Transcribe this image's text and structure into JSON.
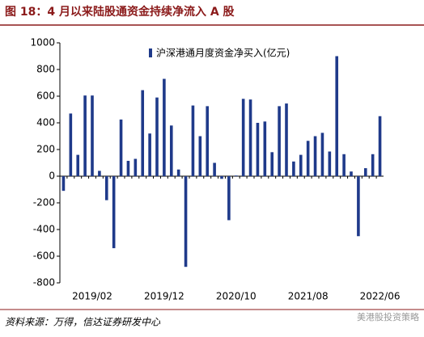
{
  "chart_data": {
    "type": "bar",
    "title": "图 18：4 月以来陆股通资金持续净流入 A 股",
    "legend": "沪深港通月度资金净买入(亿元)",
    "source": "资料来源：万得，信达证券研发中心",
    "watermark": "美港股投资策略",
    "color": "#1f3a8a",
    "categories": [
      null,
      null,
      null,
      null,
      "2019/02",
      null,
      null,
      null,
      null,
      null,
      null,
      null,
      null,
      null,
      "2019/12",
      null,
      null,
      null,
      null,
      null,
      null,
      null,
      null,
      null,
      "2020/10",
      null,
      null,
      null,
      null,
      null,
      null,
      null,
      null,
      null,
      "2021/08",
      null,
      null,
      null,
      null,
      null,
      null,
      null,
      null,
      null,
      "2022/06"
    ],
    "values": [
      -110,
      470,
      160,
      605,
      605,
      40,
      -180,
      -540,
      425,
      115,
      130,
      645,
      320,
      590,
      730,
      380,
      50,
      -680,
      530,
      300,
      525,
      100,
      -20,
      -330,
      5,
      580,
      575,
      400,
      410,
      180,
      525,
      545,
      110,
      160,
      265,
      300,
      325,
      185,
      900,
      165,
      35,
      -450,
      60,
      165,
      450
    ],
    "ylim": [
      -800,
      1000
    ],
    "yticks": [
      -800,
      -600,
      -400,
      -200,
      0,
      200,
      400,
      600,
      800,
      1000
    ]
  }
}
